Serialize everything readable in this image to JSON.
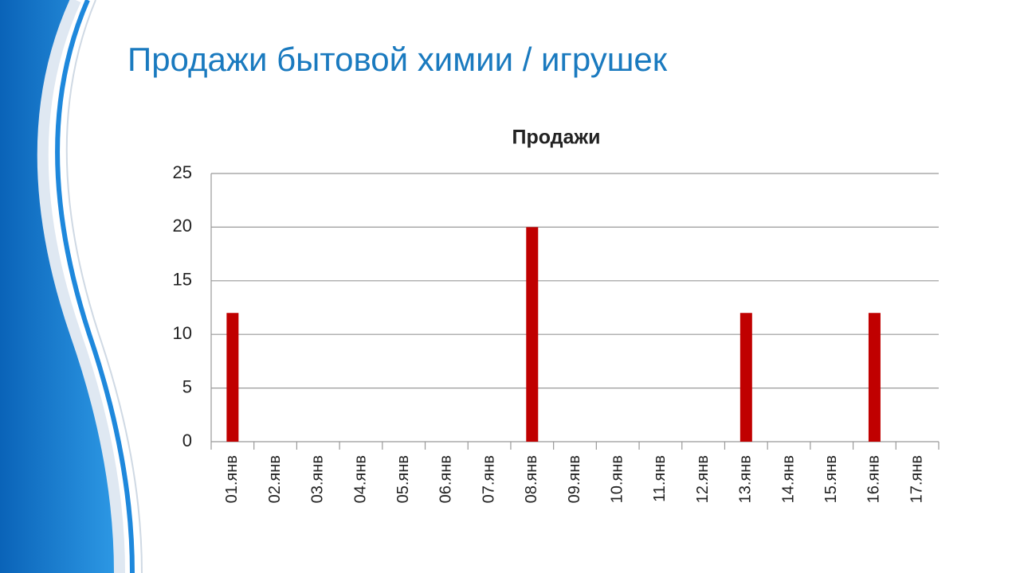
{
  "slide_title": "Продажи бытовой химии / игрушек",
  "chart_data": {
    "type": "bar",
    "title": "Продажи",
    "categories": [
      "01.янв",
      "02.янв",
      "03.янв",
      "04.янв",
      "05.янв",
      "06.янв",
      "07.янв",
      "08.янв",
      "09.янв",
      "10.янв",
      "11.янв",
      "12.янв",
      "13.янв",
      "14.янв",
      "15.янв",
      "16.янв",
      "17.янв"
    ],
    "values": [
      12,
      0,
      0,
      0,
      0,
      0,
      0,
      20,
      0,
      0,
      0,
      0,
      12,
      0,
      0,
      12,
      0
    ],
    "color": "#c00000",
    "ylim": [
      0,
      25
    ],
    "yticks": [
      0,
      5,
      10,
      15,
      20,
      25
    ],
    "grid": true
  }
}
